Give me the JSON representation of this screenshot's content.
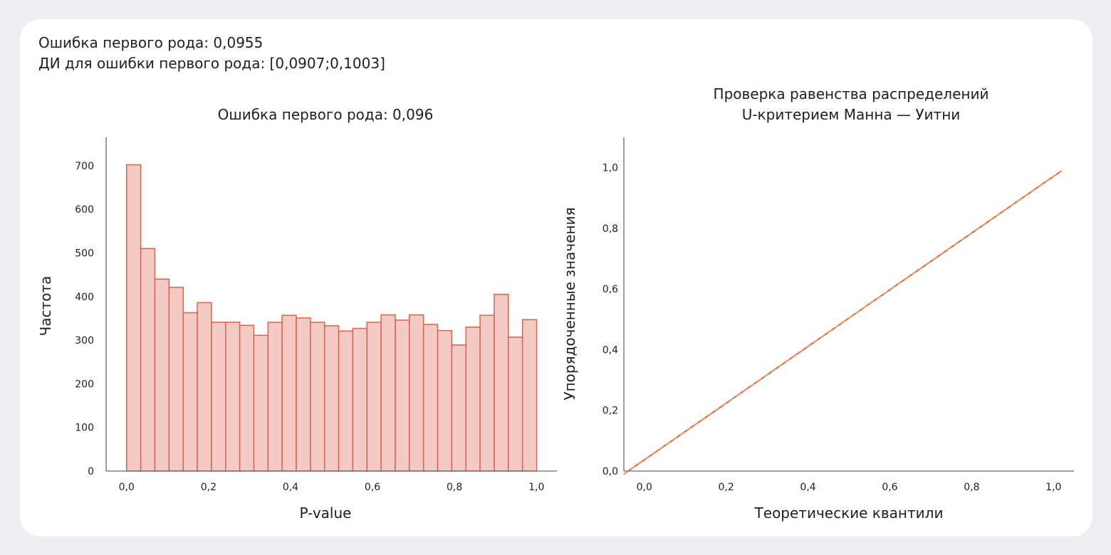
{
  "header": {
    "line1": "Ошибка первого рода: 0,0955",
    "line2": "ДИ для ошибки первого рода: [0,0907;0,1003]"
  },
  "chart_data": [
    {
      "type": "bar",
      "title": "Ошибка первого рода: 0,096",
      "xlabel": "P-value",
      "ylabel": "Частота",
      "bin_width": 0.0345,
      "bin_starts": [
        0.0,
        0.0345,
        0.069,
        0.1035,
        0.138,
        0.1725,
        0.207,
        0.2415,
        0.276,
        0.3105,
        0.345,
        0.3795,
        0.414,
        0.4485,
        0.483,
        0.5175,
        0.552,
        0.5865,
        0.621,
        0.6555,
        0.69,
        0.7245,
        0.759,
        0.7935,
        0.828,
        0.8625,
        0.897,
        0.9315,
        0.966
      ],
      "values": [
        702,
        510,
        440,
        421,
        363,
        386,
        341,
        341,
        334,
        311,
        341,
        357,
        351,
        341,
        333,
        321,
        327,
        341,
        358,
        346,
        358,
        336,
        322,
        289,
        330,
        357,
        405,
        307,
        347
      ],
      "xlim": [
        -0.05,
        1.05
      ],
      "ylim": [
        0,
        765
      ],
      "xticks": [
        0.0,
        0.2,
        0.4,
        0.6,
        0.8,
        1.0
      ],
      "xtick_labels": [
        "0,0",
        "0,2",
        "0,4",
        "0,6",
        "0,8",
        "1,0"
      ],
      "yticks": [
        0,
        100,
        200,
        300,
        400,
        500,
        600,
        700
      ],
      "ytick_labels": [
        "0",
        "100",
        "200",
        "300",
        "400",
        "500",
        "600",
        "700"
      ],
      "colors": {
        "fill": "#f4cbc4",
        "stroke": "#e0604a",
        "axis": "#6b6b6b"
      }
    },
    {
      "type": "line",
      "title": "Проверка равенства распределений",
      "subtitle": "U-критерием Манна — Уитни",
      "xlabel": "Теоретические квантили",
      "ylabel": "Упорядоченные значения",
      "series": [
        {
          "x": [
            -0.05,
            1.02
          ],
          "y": [
            -0.01,
            0.99
          ],
          "color": "#e0604a"
        },
        {
          "x": [
            -0.05,
            1.02
          ],
          "y": [
            -0.01,
            0.99
          ],
          "color": "#f0a04b",
          "dashed": true
        }
      ],
      "xlim": [
        -0.05,
        1.05
      ],
      "ylim": [
        0.0,
        1.1
      ],
      "xticks": [
        0.0,
        0.2,
        0.4,
        0.6,
        0.8,
        1.0
      ],
      "xtick_labels": [
        "0,0",
        "0,2",
        "0,4",
        "0,6",
        "0,8",
        "1,0"
      ],
      "yticks": [
        0.0,
        0.2,
        0.4,
        0.6,
        0.8,
        1.0
      ],
      "ytick_labels": [
        "0,0",
        "0,2",
        "0,4",
        "0,6",
        "0,8",
        "1,0"
      ],
      "colors": {
        "axis": "#6b6b6b"
      }
    }
  ]
}
